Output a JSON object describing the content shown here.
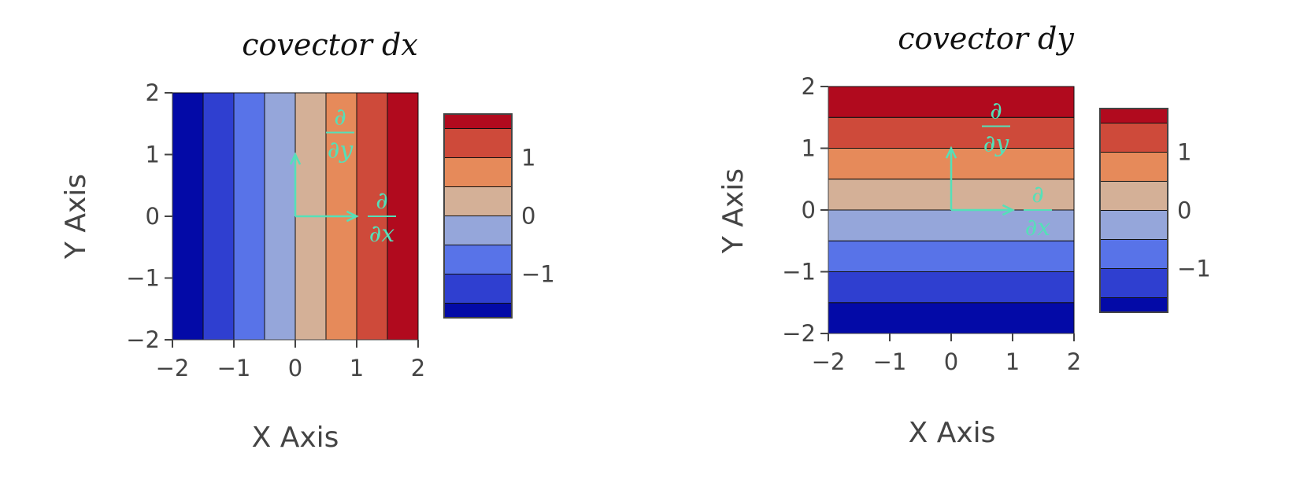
{
  "chart_data": [
    {
      "type": "heatmap",
      "title": "covector dx",
      "xlabel": "X Axis",
      "ylabel": "Y Axis",
      "xlim": [
        -2,
        2
      ],
      "ylim": [
        -2,
        2
      ],
      "varies_along": "x",
      "band_edges": [
        -2,
        -1.5,
        -1,
        -0.5,
        0,
        0.5,
        1,
        1.5,
        2
      ],
      "x_ticks": [
        "−2",
        "−1",
        "0",
        "1",
        "2"
      ],
      "y_ticks": [
        "−2",
        "−1",
        "0",
        "1",
        "2"
      ],
      "colorbar": {
        "levels": [
          -1.75,
          -1.25,
          -0.75,
          -0.25,
          0.25,
          0.75,
          1.25,
          1.75
        ],
        "range": [
          -1.75,
          1.75
        ],
        "tick_values": [
          -1,
          0,
          1
        ],
        "tick_labels": [
          "−1",
          "0",
          "1"
        ]
      },
      "basis_vectors": [
        {
          "from": [
            0,
            0
          ],
          "to": [
            1,
            0
          ],
          "label_num": "∂",
          "label_den": "∂x"
        },
        {
          "from": [
            0,
            0
          ],
          "to": [
            0,
            1
          ],
          "label_num": "∂",
          "label_den": "∂y"
        }
      ]
    },
    {
      "type": "heatmap",
      "title": "covector dy",
      "xlabel": "X Axis",
      "ylabel": "Y Axis",
      "xlim": [
        -2,
        2
      ],
      "ylim": [
        -2,
        2
      ],
      "varies_along": "y",
      "band_edges": [
        -2,
        -1.5,
        -1,
        -0.5,
        0,
        0.5,
        1,
        1.5,
        2
      ],
      "x_ticks": [
        "−2",
        "−1",
        "0",
        "1",
        "2"
      ],
      "y_ticks": [
        "−2",
        "−1",
        "0",
        "1",
        "2"
      ],
      "colorbar": {
        "levels": [
          -1.75,
          -1.25,
          -0.75,
          -0.25,
          0.25,
          0.75,
          1.25,
          1.75
        ],
        "range": [
          -1.75,
          1.75
        ],
        "tick_values": [
          -1,
          0,
          1
        ],
        "tick_labels": [
          "−1",
          "0",
          "1"
        ]
      },
      "basis_vectors": [
        {
          "from": [
            0,
            0
          ],
          "to": [
            1,
            0
          ],
          "label_num": "∂",
          "label_den": "∂x"
        },
        {
          "from": [
            0,
            0
          ],
          "to": [
            0,
            1
          ],
          "label_num": "∂",
          "label_den": "∂y"
        }
      ]
    }
  ],
  "colors": {
    "levels": [
      "#030aa7",
      "#2f3fd0",
      "#5873e8",
      "#95a6da",
      "#d4b097",
      "#e68a5a",
      "#ce4a3a",
      "#b10a1e"
    ],
    "annotation": "#55e0b8",
    "tick": "#444444"
  }
}
